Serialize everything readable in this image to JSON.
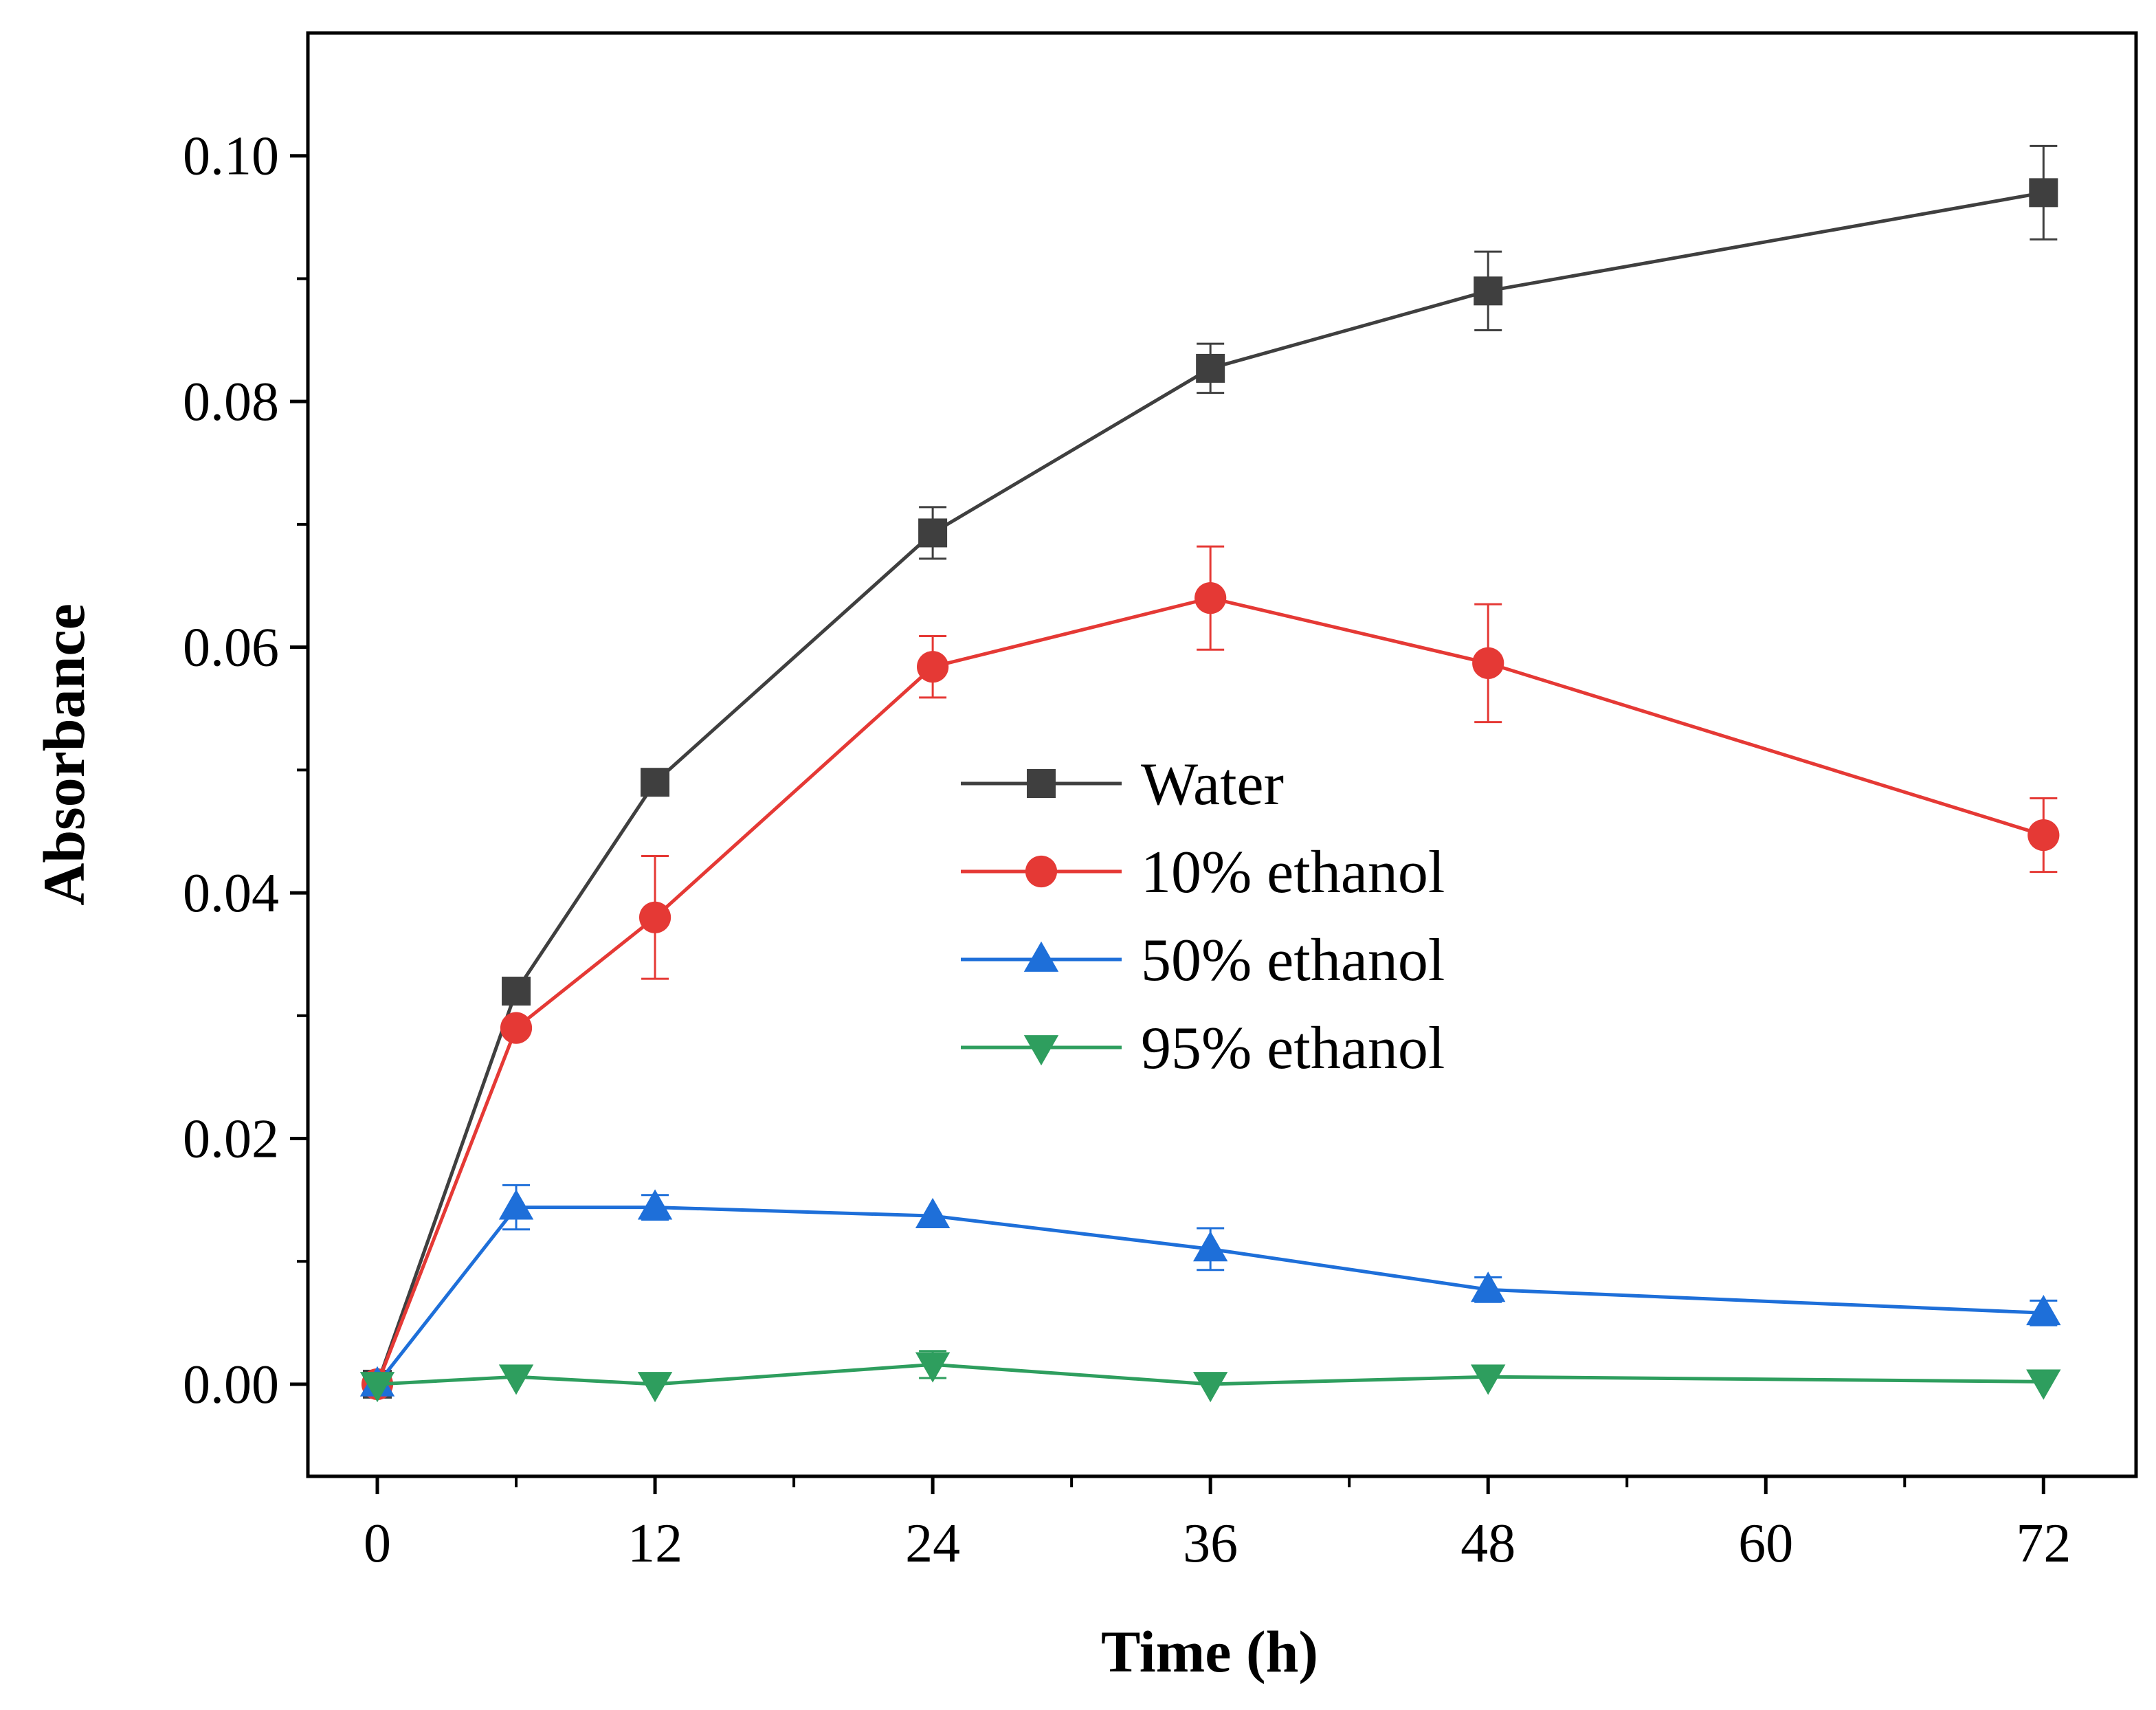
{
  "chart_data": {
    "type": "line",
    "xlabel": "Time (h)",
    "ylabel": "Absorbance",
    "xlim": [
      -3,
      76
    ],
    "ylim": [
      -0.0075,
      0.11
    ],
    "xticks": [
      0,
      12,
      24,
      36,
      48,
      60,
      72
    ],
    "xtick_labels": [
      "0",
      "12",
      "24",
      "36",
      "48",
      "60",
      "72"
    ],
    "yticks": [
      0,
      0.02,
      0.04,
      0.06,
      0.08,
      0.1
    ],
    "ytick_labels": [
      "0.00",
      "0.02",
      "0.04",
      "0.06",
      "0.08",
      "0.10"
    ],
    "grid": false,
    "legend_position": "center",
    "x": [
      0,
      6,
      12,
      24,
      36,
      48,
      72
    ],
    "series": [
      {
        "name": "Water",
        "color": "#3f3f3f",
        "marker": "square",
        "values": [
          0,
          0.032,
          0.049,
          0.0693,
          0.0827,
          0.089,
          0.097
        ],
        "errors": [
          0,
          0,
          0,
          0.0021,
          0.002,
          0.0032,
          0.0038
        ]
      },
      {
        "name": "10% ethanol",
        "color": "#e53935",
        "marker": "circle",
        "values": [
          0,
          0.029,
          0.038,
          0.0584,
          0.064,
          0.0587,
          0.0447
        ],
        "errors": [
          0,
          0,
          0.005,
          0.0025,
          0.0042,
          0.0048,
          0.003
        ]
      },
      {
        "name": "50% ethanol",
        "color": "#1e6fd9",
        "marker": "triangle-up",
        "values": [
          0,
          0.0144,
          0.0144,
          0.0137,
          0.011,
          0.0077,
          0.0058
        ],
        "errors": [
          0,
          0.0018,
          0.001,
          0,
          0.0017,
          0.001,
          0.001
        ]
      },
      {
        "name": "95% ethanol",
        "color": "#2e9e5e",
        "marker": "triangle-down",
        "values": [
          0,
          0.0006,
          0,
          0.0016,
          0,
          0.0006,
          0.0002
        ],
        "errors": [
          0,
          0,
          0,
          0.0011,
          0,
          0,
          0
        ]
      }
    ]
  }
}
